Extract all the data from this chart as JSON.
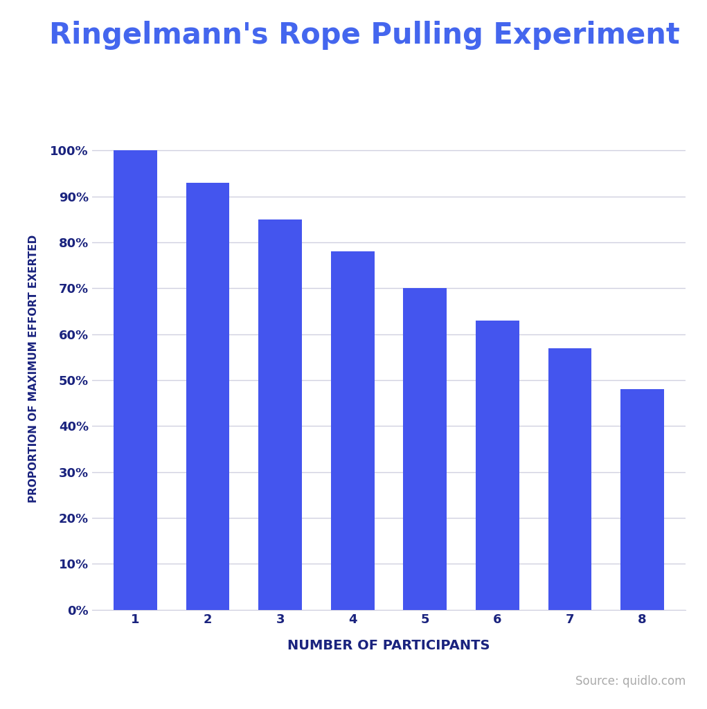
{
  "title": "Ringelmann's Rope Pulling Experiment",
  "title_color": "#4466ee",
  "title_fontsize": 30,
  "title_fontweight": "bold",
  "xlabel": "NUMBER OF PARTICIPANTS",
  "xlabel_color": "#1a237e",
  "xlabel_fontsize": 14,
  "xlabel_fontweight": "bold",
  "ylabel": "PROPORTION OF MAXIMUM EFFORT EXERTED",
  "ylabel_color": "#1a237e",
  "ylabel_fontsize": 11,
  "ylabel_fontweight": "bold",
  "categories": [
    1,
    2,
    3,
    4,
    5,
    6,
    7,
    8
  ],
  "values": [
    100,
    93,
    85,
    78,
    70,
    63,
    57,
    48
  ],
  "bar_color": "#4455ee",
  "ylim": [
    0,
    105
  ],
  "ytick_labels": [
    "0%",
    "10%",
    "20%",
    "30%",
    "40%",
    "50%",
    "60%",
    "70%",
    "80%",
    "90%",
    "100%"
  ],
  "ytick_values": [
    0,
    10,
    20,
    30,
    40,
    50,
    60,
    70,
    80,
    90,
    100
  ],
  "grid_color": "#d0d0e0",
  "background_color": "#ffffff",
  "source_text": "Source: quidlo.com",
  "source_color": "#aaaaaa",
  "source_fontsize": 12,
  "tick_label_color": "#1a237e",
  "tick_fontsize": 13
}
